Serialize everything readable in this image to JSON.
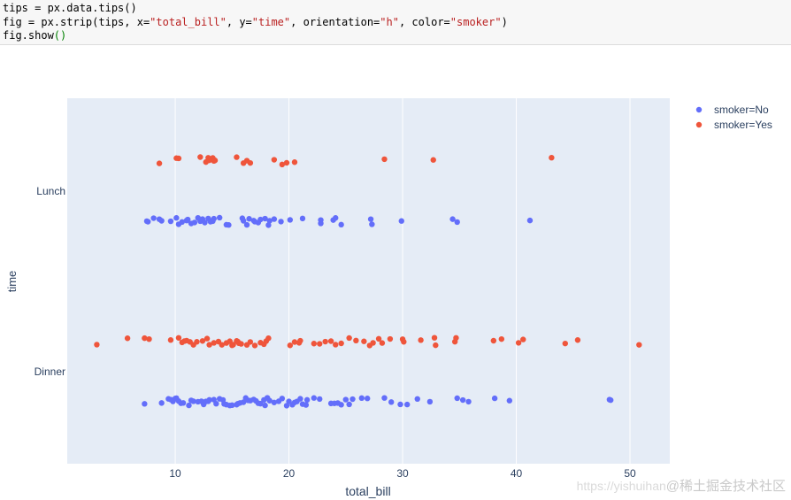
{
  "code": {
    "line1": "tips = px.data.tips()",
    "line2_a": "fig = px.strip(tips, x=",
    "line2_b": "\"total_bill\"",
    "line2_c": ", y=",
    "line2_d": "\"time\"",
    "line2_e": ", orientation=",
    "line2_f": "\"h\"",
    "line2_g": ", color=",
    "line2_h": "\"smoker\"",
    "line2_i": ")",
    "line3_a": "fig.show",
    "line3_b": "()"
  },
  "colors": {
    "plot_bg": "#e5ecf6",
    "grid": "#ffffff",
    "no": "#636efa",
    "yes": "#ef553b",
    "axis_text": "#2a3f5f"
  },
  "chart_data": {
    "type": "scatter",
    "xlabel": "total_bill",
    "ylabel": "time",
    "xlim": [
      0.5,
      53.5
    ],
    "x_ticks": [
      10,
      20,
      30,
      40,
      50
    ],
    "categories": [
      "Lunch",
      "Dinner"
    ],
    "grid": true,
    "legend_position": "top-right",
    "series": [
      {
        "name": "smoker=No",
        "color": "#636efa",
        "points": [
          {
            "time": "Lunch",
            "values": [
              7.5,
              7.6,
              8.1,
              8.6,
              8.8,
              9.6,
              10.1,
              10.3,
              10.6,
              11.0,
              11.1,
              11.4,
              11.7,
              12.0,
              12.2,
              12.4,
              12.6,
              12.9,
              13.1,
              13.3,
              13.4,
              13.9,
              14.5,
              14.7,
              15.9,
              16.0,
              16.3,
              16.5,
              16.9,
              17.0,
              17.3,
              17.5,
              17.9,
              18.2,
              18.3,
              18.7,
              19.3,
              20.1,
              21.2,
              22.8,
              22.8,
              23.9,
              24.1,
              24.6,
              27.2,
              27.3,
              29.9,
              34.4,
              34.8,
              41.2
            ]
          },
          {
            "time": "Dinner",
            "values": [
              7.3,
              8.8,
              9.4,
              9.6,
              9.8,
              10.0,
              10.1,
              10.3,
              10.5,
              10.7,
              11.2,
              11.4,
              11.6,
              12.0,
              12.3,
              12.5,
              12.7,
              12.9,
              13.0,
              13.4,
              13.6,
              13.9,
              14.2,
              14.3,
              14.5,
              14.8,
              15.0,
              15.4,
              15.5,
              15.7,
              16.0,
              16.2,
              16.4,
              16.6,
              16.9,
              17.1,
              17.3,
              17.5,
              17.8,
              17.9,
              18.1,
              18.3,
              18.7,
              19.1,
              19.4,
              19.8,
              20.0,
              20.3,
              20.5,
              20.7,
              21.0,
              21.2,
              21.5,
              21.6,
              22.2,
              22.7,
              23.7,
              24.0,
              24.3,
              24.6,
              25.0,
              25.3,
              25.6,
              26.4,
              26.9,
              28.4,
              29.0,
              29.8,
              30.4,
              31.3,
              32.4,
              34.8,
              35.3,
              35.8,
              38.1,
              39.4,
              48.2,
              48.3
            ]
          }
        ]
      },
      {
        "name": "smoker=Yes",
        "color": "#ef553b",
        "points": [
          {
            "time": "Lunch",
            "values": [
              8.6,
              10.1,
              10.3,
              12.2,
              12.7,
              12.9,
              13.0,
              13.3,
              13.4,
              13.5,
              15.4,
              16.0,
              16.3,
              16.6,
              18.7,
              19.4,
              19.8,
              20.5,
              28.4,
              32.7,
              43.1
            ]
          },
          {
            "time": "Dinner",
            "values": [
              3.1,
              5.8,
              7.3,
              7.7,
              9.6,
              10.3,
              10.6,
              10.8,
              11.0,
              11.3,
              11.6,
              11.9,
              12.4,
              12.8,
              13.0,
              13.4,
              13.8,
              14.1,
              14.5,
              14.8,
              15.0,
              15.1,
              15.4,
              15.5,
              15.6,
              15.8,
              16.3,
              16.6,
              17.0,
              17.5,
              17.8,
              18.0,
              18.2,
              20.1,
              20.5,
              20.9,
              21.0,
              22.2,
              22.7,
              23.2,
              23.7,
              24.1,
              24.6,
              25.3,
              25.9,
              26.6,
              27.1,
              27.4,
              27.9,
              28.2,
              28.9,
              30.0,
              30.1,
              31.6,
              32.8,
              32.9,
              34.6,
              34.7,
              38.0,
              38.7,
              40.2,
              40.6,
              44.3,
              45.4,
              50.8
            ]
          }
        ]
      }
    ]
  },
  "watermark": {
    "url": "https://yishuihan",
    "text": "@稀土掘金技术社区"
  }
}
